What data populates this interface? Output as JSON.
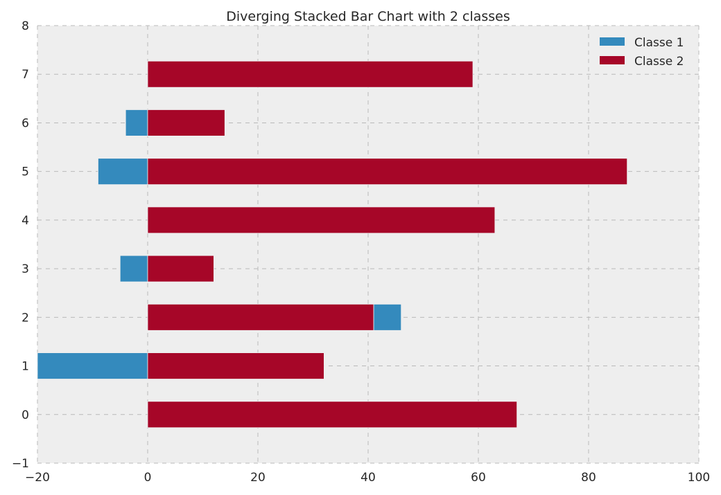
{
  "chart_data": {
    "type": "bar",
    "orientation": "horizontal",
    "stacked": true,
    "title": "Diverging Stacked Bar Chart with 2 classes",
    "xlabel": "",
    "ylabel": "",
    "xlim": [
      -20,
      100
    ],
    "ylim": [
      -1,
      8
    ],
    "xticks": [
      "−20",
      "0",
      "20",
      "40",
      "60",
      "80",
      "100"
    ],
    "yticks": [
      "−1",
      "0",
      "1",
      "2",
      "3",
      "4",
      "5",
      "6",
      "7",
      "8"
    ],
    "categories": [
      0,
      1,
      2,
      3,
      4,
      5,
      6,
      7
    ],
    "grid": true,
    "legend_position": "top-right",
    "series": [
      {
        "name": "Classe 1",
        "color": "#348abd",
        "bars": [
          {
            "y": 0,
            "start": 0,
            "end": 0
          },
          {
            "y": 1,
            "start": -20,
            "end": 0
          },
          {
            "y": 2,
            "start": 41,
            "end": 46
          },
          {
            "y": 3,
            "start": -5,
            "end": 0
          },
          {
            "y": 4,
            "start": 0,
            "end": 0
          },
          {
            "y": 5,
            "start": -9,
            "end": 0
          },
          {
            "y": 6,
            "start": -4,
            "end": 0
          },
          {
            "y": 7,
            "start": 0,
            "end": 0
          }
        ]
      },
      {
        "name": "Classe 2",
        "color": "#a60628",
        "bars": [
          {
            "y": 0,
            "start": 0,
            "end": 67
          },
          {
            "y": 1,
            "start": 0,
            "end": 32
          },
          {
            "y": 2,
            "start": 0,
            "end": 41
          },
          {
            "y": 3,
            "start": 0,
            "end": 12
          },
          {
            "y": 4,
            "start": 0,
            "end": 63
          },
          {
            "y": 5,
            "start": 0,
            "end": 87
          },
          {
            "y": 6,
            "start": 0,
            "end": 14
          },
          {
            "y": 7,
            "start": 0,
            "end": 59
          }
        ]
      }
    ]
  }
}
